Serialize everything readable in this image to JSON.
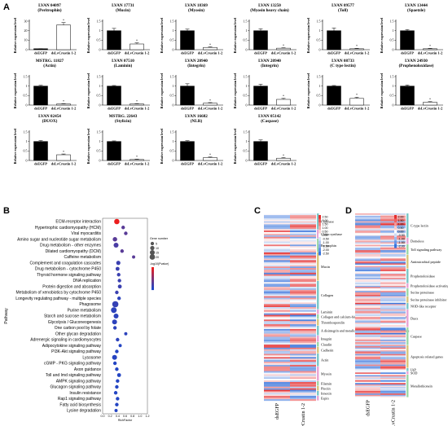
{
  "panels": {
    "a": "A",
    "b": "B",
    "c": "C",
    "d": "D"
  },
  "bar_common": {
    "ylabel": "Relative expression level",
    "categories": [
      "dsEGFP",
      "dsLvCrustin 1-2"
    ],
    "star": "*"
  },
  "chart_data": [
    {
      "type": "bar",
      "title": "LVAN 04097",
      "subtitle": "(Peritrophin)",
      "categories": [
        "dsEGFP",
        "dsLvCrustin 1-2"
      ],
      "values": [
        1.0,
        26.0
      ],
      "errors": [
        0.1,
        2.5
      ],
      "ylim": [
        0,
        30
      ],
      "yticks": [
        0,
        10,
        20,
        30
      ]
    },
    {
      "type": "bar",
      "title": "LVAN 17731",
      "subtitle": "(Mucin)",
      "categories": [
        "dsEGFP",
        "dsLvCrustin 1-2"
      ],
      "values": [
        1.0,
        0.3
      ],
      "errors": [
        0.12,
        0.06
      ],
      "ylim": [
        0,
        1.5
      ],
      "yticks": [
        0,
        0.5,
        1.0,
        1.5
      ]
    },
    {
      "type": "bar",
      "title": "LVAN 18369",
      "subtitle": "(Myosin)",
      "categories": [
        "dsEGFP",
        "dsLvCrustin 1-2"
      ],
      "values": [
        1.0,
        0.12
      ],
      "errors": [
        0.08,
        0.03
      ],
      "ylim": [
        0,
        1.5
      ],
      "yticks": [
        0,
        0.5,
        1.0,
        1.5
      ]
    },
    {
      "type": "bar",
      "title": "LVAN 13250",
      "subtitle": "(Myosin heavy chain)",
      "categories": [
        "dsEGFP",
        "dsLvCrustin 1-2"
      ],
      "values": [
        1.0,
        0.08
      ],
      "errors": [
        0.1,
        0.02
      ],
      "ylim": [
        0,
        1.5
      ],
      "yticks": [
        0,
        0.5,
        1.0,
        1.5
      ]
    },
    {
      "type": "bar",
      "title": "LVAN 09577",
      "subtitle": "(Toll)",
      "categories": [
        "dsEGFP",
        "dsLvCrustin 1-2"
      ],
      "values": [
        1.0,
        0.05
      ],
      "errors": [
        0.14,
        0.02
      ],
      "ylim": [
        0,
        1.5
      ],
      "yticks": [
        0,
        0.5,
        1.0,
        1.5
      ]
    },
    {
      "type": "bar",
      "title": "LVAN 13444",
      "subtitle": "(Spaetzle)",
      "categories": [
        "dsEGFP",
        "dsLvCrustin 1-2"
      ],
      "values": [
        1.0,
        0.05
      ],
      "errors": [
        0.06,
        0.02
      ],
      "ylim": [
        0,
        1.5
      ],
      "yticks": [
        0,
        0.5,
        1.0,
        1.5
      ]
    },
    {
      "type": "bar",
      "title": "MSTRG. 11827",
      "subtitle": "(Actin)",
      "categories": [
        "dsEGFP",
        "dsLvCrustin 1-2"
      ],
      "values": [
        1.0,
        0.06
      ],
      "errors": [
        0.04,
        0.02
      ],
      "ylim": [
        0,
        1.5
      ],
      "yticks": [
        0,
        0.5,
        1.0,
        1.5
      ]
    },
    {
      "type": "bar",
      "title": "LVAN 07510",
      "subtitle": "(Laminin)",
      "categories": [
        "dsEGFP",
        "dsLvCrustin 1-2"
      ],
      "values": [
        1.0,
        0.06
      ],
      "errors": [
        0.03,
        0.02
      ],
      "ylim": [
        0,
        1.5
      ],
      "yticks": [
        0,
        0.5,
        1.0,
        1.5
      ]
    },
    {
      "type": "bar",
      "title": "LVAN 20940",
      "subtitle": "(Integrin)",
      "categories": [
        "dsEGFP",
        "dsLvCrustin 1-2"
      ],
      "values": [
        1.0,
        0.1
      ],
      "errors": [
        0.12,
        0.03
      ],
      "ylim": [
        0,
        1.5
      ],
      "yticks": [
        0,
        0.5,
        1.0,
        1.5
      ]
    },
    {
      "type": "bar",
      "title": "LVAN 20940",
      "subtitle": "(Integrin)",
      "categories": [
        "dsEGFP",
        "dsLvCrustin 1-2"
      ],
      "values": [
        1.0,
        0.3
      ],
      "errors": [
        0.1,
        0.05
      ],
      "ylim": [
        0,
        1.5
      ],
      "yticks": [
        0,
        0.5,
        1.0,
        1.5
      ]
    },
    {
      "type": "bar",
      "title": "LVAN 08733",
      "subtitle": "(C type lectin)",
      "categories": [
        "dsEGFP",
        "dsLvCrustin 1-2"
      ],
      "values": [
        1.0,
        0.35
      ],
      "errors": [
        0.03,
        0.06
      ],
      "ylim": [
        0,
        1.5
      ],
      "yticks": [
        0,
        0.5,
        1.0,
        1.5
      ]
    },
    {
      "type": "bar",
      "title": "LVAN 24930",
      "subtitle": "(Prophenoloxidase)",
      "categories": [
        "dsEGFP",
        "dsLvCrustin 1-2"
      ],
      "values": [
        1.0,
        0.15
      ],
      "errors": [
        0.06,
        0.03
      ],
      "ylim": [
        0,
        1.5
      ],
      "yticks": [
        0,
        0.5,
        1.0,
        1.5
      ]
    },
    {
      "type": "bar",
      "title": "LVAN 02454",
      "subtitle": "(DUOX)",
      "categories": [
        "dsEGFP",
        "dsLvCrustin 1-2"
      ],
      "values": [
        1.0,
        0.3
      ],
      "errors": [
        0.05,
        0.04
      ],
      "ylim": [
        0,
        1.5
      ],
      "yticks": [
        0,
        0.5,
        1.0,
        1.5
      ]
    },
    {
      "type": "bar",
      "title": "MSTRG. 22643",
      "subtitle": "(Stylicin)",
      "categories": [
        "dsEGFP",
        "dsLvCrustin 1-2"
      ],
      "values": [
        1.0,
        0.05
      ],
      "errors": [
        0.03,
        0.02
      ],
      "ylim": [
        0,
        1.5
      ],
      "yticks": [
        0,
        0.5,
        1.0,
        1.5
      ]
    },
    {
      "type": "bar",
      "title": "LVAN 16682",
      "subtitle": "(NLR)",
      "categories": [
        "dsEGFP",
        "dsLvCrustin 1-2"
      ],
      "values": [
        1.0,
        0.15
      ],
      "errors": [
        0.04,
        0.03
      ],
      "ylim": [
        0,
        1.5
      ],
      "yticks": [
        0,
        0.5,
        1.0,
        1.5
      ]
    },
    {
      "type": "bar",
      "title": "LVAN 05142",
      "subtitle": "(Caspase)",
      "categories": [
        "dsEGFP",
        "dsLvCrustin 1-2"
      ],
      "values": [
        1.0,
        0.12
      ],
      "errors": [
        0.08,
        0.03
      ],
      "ylim": [
        0,
        1.5
      ],
      "yticks": [
        0,
        0.5,
        1.0,
        1.5
      ]
    },
    {
      "type": "scatter",
      "ylabel": "Pathway",
      "xlabel": "RichFactor",
      "xticks": [
        "0.0",
        "0.2",
        "0.4",
        "0.6",
        "0.8",
        "1.0",
        "1.2"
      ],
      "xlim": [
        0,
        1.2
      ],
      "legend_size_title": "Gene number",
      "legend_size_values": [
        "5",
        "10",
        "15",
        "20"
      ],
      "legend_color_title": "-log10(Pvalue)",
      "pathways": [
        "ECM-receptor interaction",
        "Hypertrophic cardiomyopathy (HCM)",
        "Viral myocarditis",
        "Amino sugar and nucleotide sugar metabolism",
        "Drug metabolism - other enzymes",
        "Dilated cardiomyopathy (DCM)",
        "Caffeine metabolism",
        "Complement and coagulation cascades",
        "Drug metabolism - cytochrome P450",
        "Thyroid hormone signaling pathway",
        "DNA replication",
        "Protein digestion and absorption",
        "Metabolism of xenobiotics by cytochrome P450",
        "Longevity regulating pathway - multiple species",
        "Phagosome",
        "Purine metabolism",
        "Starch and sucrose metabolism",
        "Glycolysis / Gluconeogenesis",
        "One carbon pool by folate",
        "Other glycan degradation",
        "Adrenergic signaling in cardiomyocytes",
        "Adipocytokine signaling pathway",
        "PI3K-Akt signaling pathway",
        "Lysosome",
        "cGMP - PKG signaling pathway",
        "Axon guidance",
        "Toll and Imd signaling pathway",
        "AMPK signaling pathway",
        "Glucagon signaling pathway",
        "Insulin resistance",
        "Rap1 signaling pathway",
        "Fatty acid biosynthesis",
        "Lysine degradation"
      ],
      "rich_factor": [
        0.38,
        0.55,
        0.62,
        0.33,
        0.36,
        0.52,
        0.83,
        0.42,
        0.4,
        0.43,
        0.45,
        0.46,
        0.38,
        0.44,
        0.34,
        0.3,
        0.36,
        0.32,
        0.33,
        0.62,
        0.4,
        0.47,
        0.38,
        0.32,
        0.33,
        0.38,
        0.44,
        0.4,
        0.38,
        0.35,
        0.4,
        0.38,
        0.36
      ],
      "gene_number": [
        10,
        3,
        3,
        6,
        8,
        3,
        2,
        5,
        4,
        3,
        3,
        4,
        3,
        3,
        15,
        12,
        8,
        8,
        3,
        2,
        3,
        2,
        3,
        8,
        3,
        3,
        4,
        3,
        3,
        3,
        3,
        3,
        2
      ],
      "neg_log10_p": [
        8,
        3,
        3,
        3,
        2.5,
        3,
        3,
        2,
        2,
        2,
        2,
        2,
        2,
        1.5,
        1.8,
        1.5,
        1.5,
        1.5,
        1.5,
        1.5,
        1.5,
        1.2,
        1.2,
        1.3,
        1.2,
        1.2,
        1.2,
        1.2,
        1.2,
        1.2,
        1.2,
        1.2,
        1.2
      ]
    },
    {
      "type": "heatmap",
      "x": [
        "dsEGFP",
        "dsLvCrustin 1-2"
      ],
      "legend": [
        "2.50",
        "2.00",
        "1.50",
        "1.00",
        "0.50",
        "0.00",
        "-0.50",
        "-1.00",
        "-1.50",
        "-2.00",
        "-2.50"
      ],
      "row_groups": [
        "Chitinase",
        "Chitin synthase",
        "Peritrophin",
        "Mucin",
        "Collagen",
        "Laminin",
        "Collagen and calcium-binding EGF domain-containing protein",
        "Thrombospondin",
        "A disintegrin and metalloproteinase with thrombospondin motifs",
        "Integrin",
        "Claudin",
        "Cadherin",
        "Actin",
        "Myosin",
        "Filamin",
        "Plectin",
        "Innexin",
        "Espin"
      ]
    },
    {
      "type": "heatmap",
      "x": [
        "dsEGFP",
        "dsLvCrustin 1-2"
      ],
      "legend": [
        "2.00",
        "1.50",
        "1.00",
        "0.50",
        "0.00",
        "-0.50",
        "-1.00",
        "-1.50",
        "-2.00"
      ],
      "row_groups": [
        "C-type lectin",
        "Domeless",
        "Toll signaling pathway",
        "Antimicrobial peptide",
        "Prophenoloxidase",
        "Prophenoloxidase activating enzyme",
        "Serine proteinase",
        "Serine proteinase inhibitor",
        "NOD-like receptor",
        "Duox",
        "Caspase",
        "Apoptosis related genes",
        "IAP",
        "SOD",
        "Metallothionein"
      ]
    }
  ]
}
